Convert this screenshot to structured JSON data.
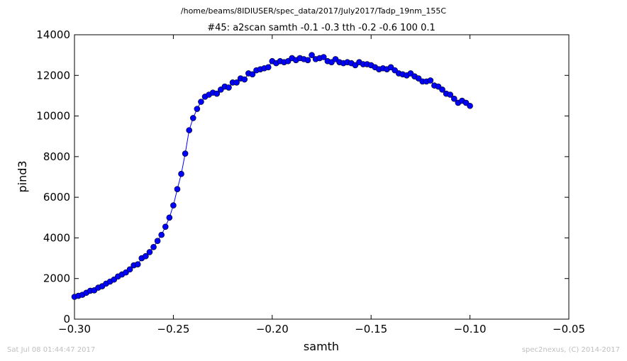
{
  "header": {
    "file_path": "/home/beams/8IDIUSER/spec_data/2017/July2017/Tadp_19nm_155C"
  },
  "footer": {
    "timestamp": "Sat Jul 08 01:44:47 2017",
    "credit": "spec2nexus, (C) 2014-2017"
  },
  "colors": {
    "series": "#0000ff",
    "marker_edge": "#000000"
  },
  "chart_data": {
    "type": "line",
    "title": "#45: a2scan  samth -0.1 -0.3  tth -0.2 -0.6  100 0.1",
    "xlabel": "samth",
    "ylabel": "pind3",
    "xlim": [
      -0.3,
      -0.05
    ],
    "ylim": [
      0,
      14000
    ],
    "xticks": [
      -0.3,
      -0.25,
      -0.2,
      -0.15,
      -0.1,
      -0.05
    ],
    "xtick_labels": [
      "−0.30",
      "−0.25",
      "−0.20",
      "−0.15",
      "−0.10",
      "−0.05"
    ],
    "yticks": [
      0,
      2000,
      4000,
      6000,
      8000,
      10000,
      12000,
      14000
    ],
    "ytick_labels": [
      "0",
      "2000",
      "4000",
      "6000",
      "8000",
      "10000",
      "12000",
      "14000"
    ],
    "grid": false,
    "series": [
      {
        "x": [
          -0.3,
          -0.298,
          -0.296,
          -0.294,
          -0.292,
          -0.29,
          -0.288,
          -0.286,
          -0.284,
          -0.282,
          -0.28,
          -0.278,
          -0.276,
          -0.274,
          -0.272,
          -0.27,
          -0.268,
          -0.266,
          -0.264,
          -0.262,
          -0.26,
          -0.258,
          -0.256,
          -0.254,
          -0.252,
          -0.25,
          -0.248,
          -0.246,
          -0.244,
          -0.242,
          -0.24,
          -0.238,
          -0.236,
          -0.234,
          -0.232,
          -0.23,
          -0.228,
          -0.226,
          -0.224,
          -0.222,
          -0.22,
          -0.218,
          -0.216,
          -0.214,
          -0.212,
          -0.21,
          -0.208,
          -0.206,
          -0.204,
          -0.202,
          -0.2,
          -0.198,
          -0.196,
          -0.194,
          -0.192,
          -0.19,
          -0.188,
          -0.186,
          -0.184,
          -0.182,
          -0.18,
          -0.178,
          -0.176,
          -0.174,
          -0.172,
          -0.17,
          -0.168,
          -0.166,
          -0.164,
          -0.162,
          -0.16,
          -0.158,
          -0.156,
          -0.154,
          -0.152,
          -0.15,
          -0.148,
          -0.146,
          -0.144,
          -0.142,
          -0.14,
          -0.138,
          -0.136,
          -0.134,
          -0.132,
          -0.13,
          -0.128,
          -0.126,
          -0.124,
          -0.122,
          -0.12,
          -0.118,
          -0.116,
          -0.114,
          -0.112,
          -0.11,
          -0.108,
          -0.106,
          -0.104,
          -0.102,
          -0.1
        ],
        "y": [
          1100,
          1150,
          1200,
          1300,
          1400,
          1420,
          1550,
          1620,
          1750,
          1850,
          1950,
          2100,
          2200,
          2300,
          2450,
          2650,
          2700,
          3000,
          3100,
          3300,
          3550,
          3850,
          4150,
          4550,
          5000,
          5600,
          6400,
          7150,
          8150,
          9300,
          9900,
          10350,
          10700,
          10950,
          11050,
          11150,
          11100,
          11300,
          11450,
          11400,
          11650,
          11650,
          11850,
          11800,
          12100,
          12050,
          12250,
          12300,
          12350,
          12400,
          12700,
          12600,
          12700,
          12650,
          12700,
          12850,
          12750,
          12850,
          12800,
          12750,
          13000,
          12800,
          12850,
          12900,
          12700,
          12650,
          12800,
          12650,
          12600,
          12650,
          12600,
          12500,
          12650,
          12550,
          12550,
          12500,
          12400,
          12300,
          12350,
          12300,
          12400,
          12250,
          12100,
          12050,
          12000,
          12100,
          11950,
          11850,
          11700,
          11700,
          11750,
          11500,
          11450,
          11300,
          11100,
          11050,
          10850,
          10650,
          10750,
          10650,
          10500
        ]
      }
    ]
  }
}
